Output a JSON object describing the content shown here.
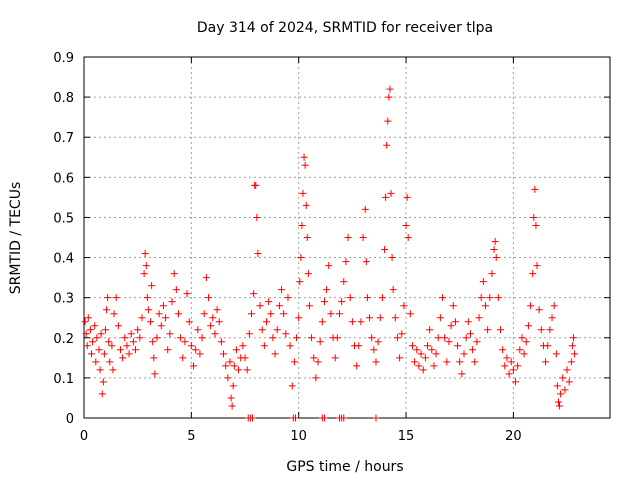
{
  "chart_data": {
    "type": "scatter",
    "title": "Day 314 of 2024, SRMTID for receiver tlpa",
    "xlabel": "GPS time / hours",
    "ylabel": "SRMTID / TECUs",
    "xlim": [
      0,
      24.5
    ],
    "ylim": [
      0,
      0.9
    ],
    "xticks": [
      0,
      5,
      10,
      15,
      20
    ],
    "xtick_labels": [
      "0",
      "5",
      "10",
      "15",
      "20"
    ],
    "yticks": [
      0,
      0.1,
      0.2,
      0.3,
      0.4,
      0.5,
      0.6,
      0.7,
      0.8,
      0.9
    ],
    "ytick_labels": [
      "0",
      "0.1",
      "0.2",
      "0.3",
      "0.4",
      "0.5",
      "0.6",
      "0.7",
      "0.8",
      "0.9"
    ],
    "grid": true,
    "marker": "plus",
    "color": "#ff0000",
    "series": [
      {
        "name": "SRMTID",
        "points": [
          [
            0.05,
            0.24
          ],
          [
            0.1,
            0.21
          ],
          [
            0.15,
            0.18
          ],
          [
            0.2,
            0.25
          ],
          [
            0.3,
            0.22
          ],
          [
            0.35,
            0.16
          ],
          [
            0.4,
            0.19
          ],
          [
            0.5,
            0.23
          ],
          [
            0.55,
            0.14
          ],
          [
            0.6,
            0.2
          ],
          [
            0.7,
            0.17
          ],
          [
            0.75,
            0.12
          ],
          [
            0.8,
            0.21
          ],
          [
            0.85,
            0.06
          ],
          [
            0.9,
            0.09
          ],
          [
            0.95,
            0.16
          ],
          [
            1.0,
            0.22
          ],
          [
            1.05,
            0.27
          ],
          [
            1.1,
            0.3
          ],
          [
            1.15,
            0.19
          ],
          [
            1.2,
            0.14
          ],
          [
            1.3,
            0.18
          ],
          [
            1.35,
            0.12
          ],
          [
            1.4,
            0.26
          ],
          [
            1.5,
            0.3
          ],
          [
            1.6,
            0.23
          ],
          [
            1.7,
            0.17
          ],
          [
            1.8,
            0.15
          ],
          [
            1.9,
            0.2
          ],
          [
            2.0,
            0.18
          ],
          [
            2.1,
            0.16
          ],
          [
            2.2,
            0.21
          ],
          [
            2.3,
            0.19
          ],
          [
            2.4,
            0.17
          ],
          [
            2.5,
            0.22
          ],
          [
            2.6,
            0.2
          ],
          [
            2.7,
            0.25
          ],
          [
            2.8,
            0.36
          ],
          [
            2.85,
            0.41
          ],
          [
            2.9,
            0.38
          ],
          [
            2.95,
            0.3
          ],
          [
            3.0,
            0.27
          ],
          [
            3.1,
            0.24
          ],
          [
            3.15,
            0.33
          ],
          [
            3.2,
            0.19
          ],
          [
            3.25,
            0.15
          ],
          [
            3.3,
            0.11
          ],
          [
            3.4,
            0.2
          ],
          [
            3.5,
            0.26
          ],
          [
            3.6,
            0.23
          ],
          [
            3.7,
            0.28
          ],
          [
            3.8,
            0.25
          ],
          [
            3.9,
            0.17
          ],
          [
            4.0,
            0.21
          ],
          [
            4.1,
            0.29
          ],
          [
            4.2,
            0.36
          ],
          [
            4.3,
            0.32
          ],
          [
            4.4,
            0.26
          ],
          [
            4.5,
            0.2
          ],
          [
            4.6,
            0.15
          ],
          [
            4.7,
            0.19
          ],
          [
            4.8,
            0.31
          ],
          [
            4.9,
            0.24
          ],
          [
            5.0,
            0.18
          ],
          [
            5.1,
            0.13
          ],
          [
            5.2,
            0.17
          ],
          [
            5.3,
            0.22
          ],
          [
            5.4,
            0.16
          ],
          [
            5.5,
            0.2
          ],
          [
            5.6,
            0.26
          ],
          [
            5.7,
            0.35
          ],
          [
            5.8,
            0.3
          ],
          [
            5.9,
            0.23
          ],
          [
            6.0,
            0.25
          ],
          [
            6.1,
            0.21
          ],
          [
            6.2,
            0.27
          ],
          [
            6.3,
            0.24
          ],
          [
            6.4,
            0.19
          ],
          [
            6.5,
            0.16
          ],
          [
            6.6,
            0.13
          ],
          [
            6.7,
            0.1
          ],
          [
            6.8,
            0.14
          ],
          [
            6.85,
            0.05
          ],
          [
            6.9,
            0.03
          ],
          [
            6.95,
            0.08
          ],
          [
            7.0,
            0.13
          ],
          [
            7.1,
            0.17
          ],
          [
            7.2,
            0.12
          ],
          [
            7.3,
            0.15
          ],
          [
            7.4,
            0.18
          ],
          [
            7.5,
            0.15
          ],
          [
            7.6,
            0.12
          ],
          [
            7.7,
            0.21
          ],
          [
            7.8,
            0.26
          ],
          [
            7.9,
            0.31
          ],
          [
            7.95,
            0.58
          ],
          [
            8.0,
            0.58
          ],
          [
            8.05,
            0.5
          ],
          [
            8.1,
            0.41
          ],
          [
            8.2,
            0.28
          ],
          [
            8.3,
            0.22
          ],
          [
            8.4,
            0.18
          ],
          [
            8.5,
            0.24
          ],
          [
            8.6,
            0.29
          ],
          [
            8.7,
            0.26
          ],
          [
            8.8,
            0.2
          ],
          [
            8.9,
            0.16
          ],
          [
            9.0,
            0.22
          ],
          [
            9.1,
            0.28
          ],
          [
            9.2,
            0.32
          ],
          [
            9.3,
            0.26
          ],
          [
            9.4,
            0.21
          ],
          [
            9.5,
            0.3
          ],
          [
            9.6,
            0.18
          ],
          [
            9.7,
            0.08
          ],
          [
            9.8,
            0.14
          ],
          [
            9.9,
            0.2
          ],
          [
            10.0,
            0.25
          ],
          [
            10.05,
            0.34
          ],
          [
            10.1,
            0.4
          ],
          [
            10.15,
            0.48
          ],
          [
            10.2,
            0.56
          ],
          [
            10.25,
            0.65
          ],
          [
            10.3,
            0.63
          ],
          [
            10.35,
            0.53
          ],
          [
            10.4,
            0.45
          ],
          [
            10.45,
            0.36
          ],
          [
            10.5,
            0.28
          ],
          [
            10.6,
            0.2
          ],
          [
            10.7,
            0.15
          ],
          [
            10.8,
            0.1
          ],
          [
            10.9,
            0.14
          ],
          [
            11.0,
            0.19
          ],
          [
            11.1,
            0.24
          ],
          [
            11.2,
            0.29
          ],
          [
            11.3,
            0.32
          ],
          [
            11.4,
            0.38
          ],
          [
            11.5,
            0.26
          ],
          [
            11.6,
            0.2
          ],
          [
            11.7,
            0.15
          ],
          [
            11.8,
            0.2
          ],
          [
            11.9,
            0.26
          ],
          [
            12.0,
            0.29
          ],
          [
            12.1,
            0.34
          ],
          [
            12.2,
            0.39
          ],
          [
            12.3,
            0.45
          ],
          [
            12.4,
            0.3
          ],
          [
            12.5,
            0.24
          ],
          [
            12.6,
            0.18
          ],
          [
            12.7,
            0.13
          ],
          [
            12.8,
            0.18
          ],
          [
            12.9,
            0.24
          ],
          [
            13.0,
            0.45
          ],
          [
            13.1,
            0.52
          ],
          [
            13.15,
            0.39
          ],
          [
            13.2,
            0.3
          ],
          [
            13.3,
            0.25
          ],
          [
            13.4,
            0.2
          ],
          [
            13.5,
            0.17
          ],
          [
            13.6,
            0.14
          ],
          [
            13.7,
            0.19
          ],
          [
            13.8,
            0.25
          ],
          [
            13.9,
            0.3
          ],
          [
            14.0,
            0.42
          ],
          [
            14.05,
            0.55
          ],
          [
            14.1,
            0.68
          ],
          [
            14.15,
            0.74
          ],
          [
            14.2,
            0.8
          ],
          [
            14.25,
            0.82
          ],
          [
            14.3,
            0.56
          ],
          [
            14.35,
            0.4
          ],
          [
            14.4,
            0.32
          ],
          [
            14.5,
            0.25
          ],
          [
            14.6,
            0.2
          ],
          [
            14.7,
            0.15
          ],
          [
            14.8,
            0.21
          ],
          [
            14.9,
            0.28
          ],
          [
            15.0,
            0.48
          ],
          [
            15.05,
            0.55
          ],
          [
            15.1,
            0.45
          ],
          [
            15.2,
            0.26
          ],
          [
            15.3,
            0.18
          ],
          [
            15.4,
            0.14
          ],
          [
            15.5,
            0.17
          ],
          [
            15.6,
            0.13
          ],
          [
            15.7,
            0.16
          ],
          [
            15.8,
            0.12
          ],
          [
            15.9,
            0.15
          ],
          [
            16.0,
            0.18
          ],
          [
            16.1,
            0.22
          ],
          [
            16.2,
            0.17
          ],
          [
            16.3,
            0.13
          ],
          [
            16.4,
            0.16
          ],
          [
            16.5,
            0.2
          ],
          [
            16.6,
            0.25
          ],
          [
            16.7,
            0.3
          ],
          [
            16.8,
            0.2
          ],
          [
            16.9,
            0.14
          ],
          [
            17.0,
            0.19
          ],
          [
            17.1,
            0.23
          ],
          [
            17.2,
            0.28
          ],
          [
            17.3,
            0.24
          ],
          [
            17.4,
            0.18
          ],
          [
            17.5,
            0.14
          ],
          [
            17.6,
            0.11
          ],
          [
            17.7,
            0.16
          ],
          [
            17.8,
            0.2
          ],
          [
            17.9,
            0.24
          ],
          [
            18.0,
            0.21
          ],
          [
            18.1,
            0.17
          ],
          [
            18.2,
            0.14
          ],
          [
            18.3,
            0.19
          ],
          [
            18.4,
            0.25
          ],
          [
            18.5,
            0.3
          ],
          [
            18.6,
            0.34
          ],
          [
            18.7,
            0.28
          ],
          [
            18.8,
            0.22
          ],
          [
            18.9,
            0.3
          ],
          [
            19.0,
            0.36
          ],
          [
            19.1,
            0.42
          ],
          [
            19.15,
            0.44
          ],
          [
            19.2,
            0.4
          ],
          [
            19.3,
            0.3
          ],
          [
            19.4,
            0.22
          ],
          [
            19.5,
            0.17
          ],
          [
            19.6,
            0.13
          ],
          [
            19.7,
            0.15
          ],
          [
            19.8,
            0.11
          ],
          [
            19.9,
            0.14
          ],
          [
            20.0,
            0.12
          ],
          [
            20.1,
            0.09
          ],
          [
            20.2,
            0.13
          ],
          [
            20.3,
            0.17
          ],
          [
            20.4,
            0.2
          ],
          [
            20.5,
            0.16
          ],
          [
            20.6,
            0.19
          ],
          [
            20.7,
            0.23
          ],
          [
            20.8,
            0.28
          ],
          [
            20.9,
            0.36
          ],
          [
            20.95,
            0.5
          ],
          [
            21.0,
            0.57
          ],
          [
            21.05,
            0.48
          ],
          [
            21.1,
            0.38
          ],
          [
            21.2,
            0.27
          ],
          [
            21.3,
            0.22
          ],
          [
            21.4,
            0.18
          ],
          [
            21.5,
            0.14
          ],
          [
            21.6,
            0.18
          ],
          [
            21.7,
            0.22
          ],
          [
            21.8,
            0.25
          ],
          [
            21.9,
            0.28
          ],
          [
            22.0,
            0.16
          ],
          [
            22.05,
            0.08
          ],
          [
            22.1,
            0.04
          ],
          [
            22.15,
            0.03
          ],
          [
            22.2,
            0.06
          ],
          [
            22.3,
            0.1
          ],
          [
            22.4,
            0.07
          ],
          [
            22.5,
            0.12
          ],
          [
            22.6,
            0.09
          ],
          [
            22.7,
            0.14
          ],
          [
            22.75,
            0.18
          ],
          [
            22.8,
            0.2
          ],
          [
            22.85,
            0.16
          ]
        ]
      }
    ],
    "zero_markers_x": [
      7.65,
      7.75,
      7.85,
      9.75,
      9.85,
      11.1,
      11.2,
      11.9,
      12.0,
      12.1,
      13.6
    ]
  }
}
